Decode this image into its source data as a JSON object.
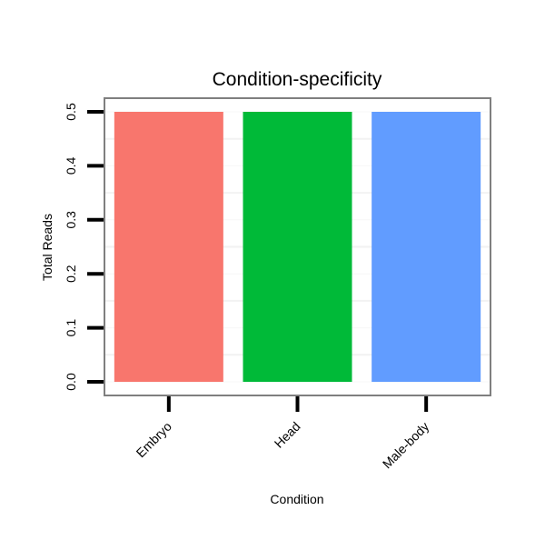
{
  "chart_data": {
    "type": "bar",
    "title": "Condition-specificity",
    "xlabel": "Condition",
    "ylabel": "Total Reads",
    "categories": [
      "Embryo",
      "Head",
      "Male-body"
    ],
    "values": [
      0.5,
      0.5,
      0.5
    ],
    "colors": [
      "#F8766D",
      "#00BA38",
      "#619CFF"
    ],
    "ylim": [
      0,
      0.5
    ],
    "yticks": [
      0.0,
      0.1,
      0.2,
      0.3,
      0.4,
      0.5
    ],
    "ytick_labels": [
      "0.0",
      "0.1",
      "0.2",
      "0.3",
      "0.4",
      "0.5"
    ],
    "grid": true,
    "legend": "none"
  }
}
